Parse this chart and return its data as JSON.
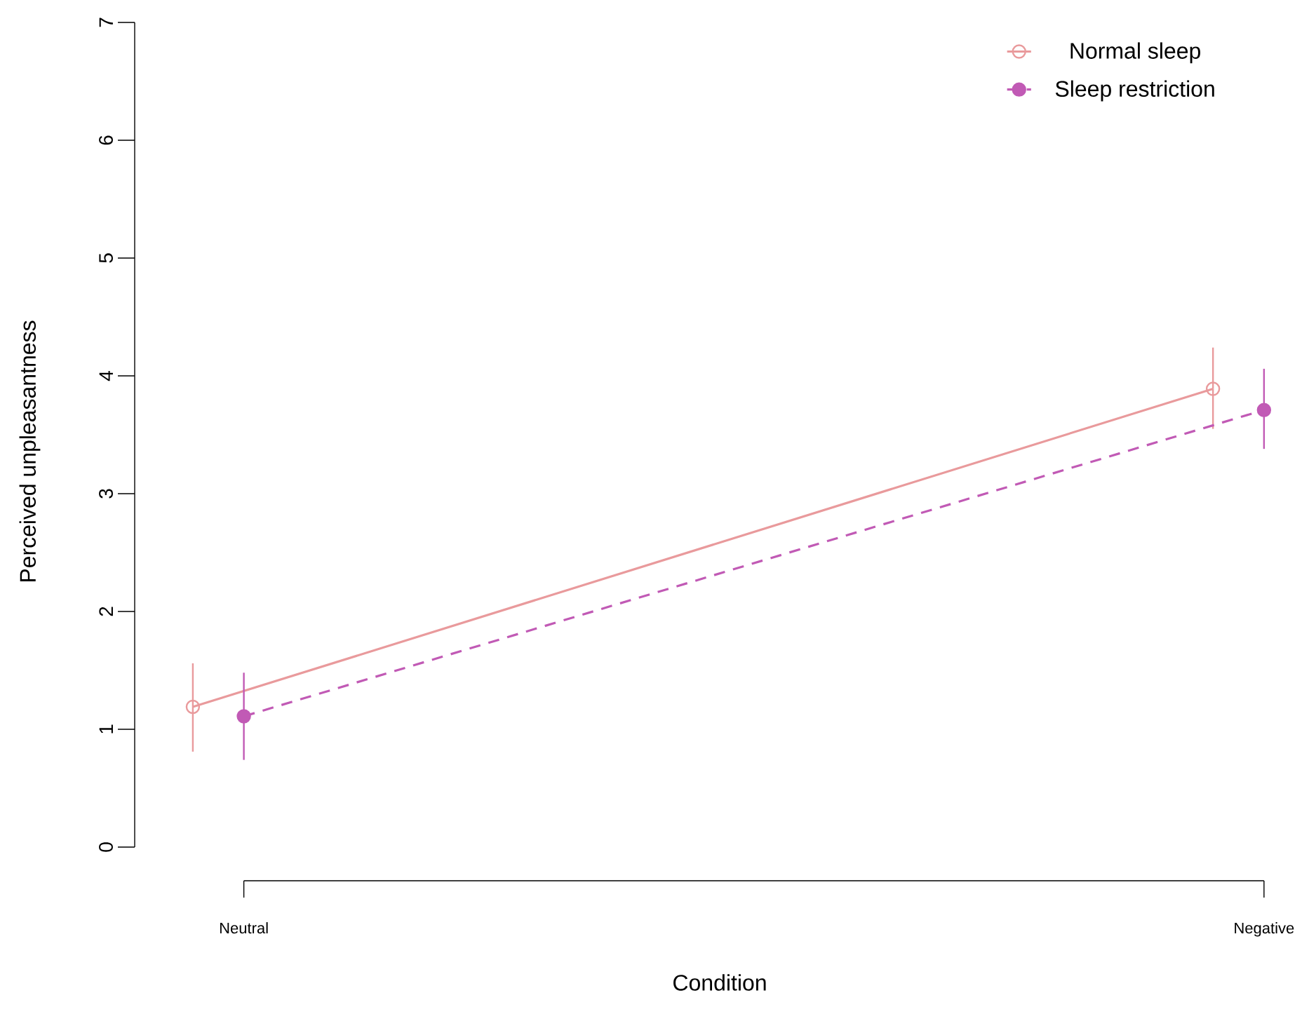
{
  "chart_data": {
    "type": "line",
    "xlabel": "Condition",
    "ylabel": "Perceived unpleasantness",
    "categories": [
      "Neutral",
      "Negative"
    ],
    "series": [
      {
        "name": "Normal sleep",
        "color": "#e99a9c",
        "values": [
          1.19,
          3.89
        ],
        "errors": [
          [
            0.81,
            1.56
          ],
          [
            3.55,
            4.24
          ]
        ],
        "marker": "circle",
        "line_style": "solid"
      },
      {
        "name": "Sleep restriction",
        "color": "#c15ab5",
        "values": [
          1.11,
          3.71
        ],
        "errors": [
          [
            0.74,
            1.48
          ],
          [
            3.38,
            4.06
          ]
        ],
        "marker": "circle",
        "line_style": "dashed"
      }
    ],
    "ylim": [
      0,
      7
    ],
    "yticks": [
      0,
      1,
      2,
      3,
      4,
      5,
      6,
      7
    ],
    "legend": "top right",
    "grid": false
  }
}
